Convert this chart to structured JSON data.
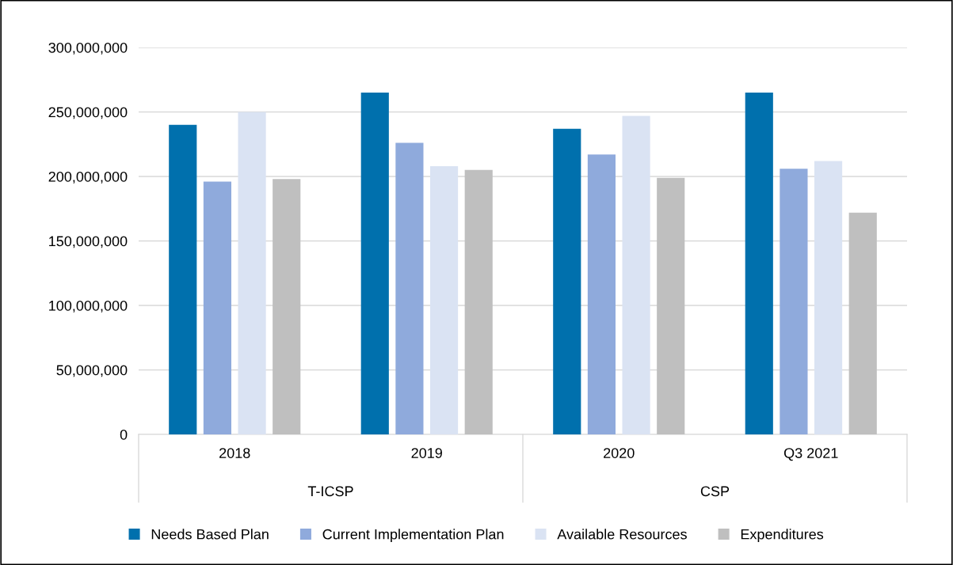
{
  "chart_data": {
    "type": "bar",
    "categories": [
      "2018",
      "2019",
      "2020",
      "Q3 2021"
    ],
    "series": [
      {
        "name": "Needs Based Plan",
        "color": "#0070ad",
        "values": [
          240000000,
          265000000,
          237000000,
          265000000
        ]
      },
      {
        "name": "Current Implementation Plan",
        "color": "#8faadc",
        "values": [
          196000000,
          226000000,
          217000000,
          206000000
        ]
      },
      {
        "name": "Available Resources",
        "color": "#dae3f3",
        "values": [
          250000000,
          208000000,
          247000000,
          212000000
        ]
      },
      {
        "name": "Expenditures",
        "color": "#bfbfbf",
        "values": [
          198000000,
          205000000,
          199000000,
          172000000
        ]
      }
    ],
    "annotations": [
      "T-ICSP",
      "CSP"
    ],
    "ylim": [
      0,
      300000000
    ],
    "yticks": [
      {
        "value": 0,
        "label": "0"
      },
      {
        "value": 50000000,
        "label": "50,000,000"
      },
      {
        "value": 100000000,
        "label": "100,000,000"
      },
      {
        "value": 150000000,
        "label": "150,000,000"
      },
      {
        "value": 200000000,
        "label": "200,000,000"
      },
      {
        "value": 250000000,
        "label": "250,000,000"
      },
      {
        "value": 300000000,
        "label": "300,000,000"
      }
    ],
    "grid": "y",
    "legend": "bottom"
  }
}
